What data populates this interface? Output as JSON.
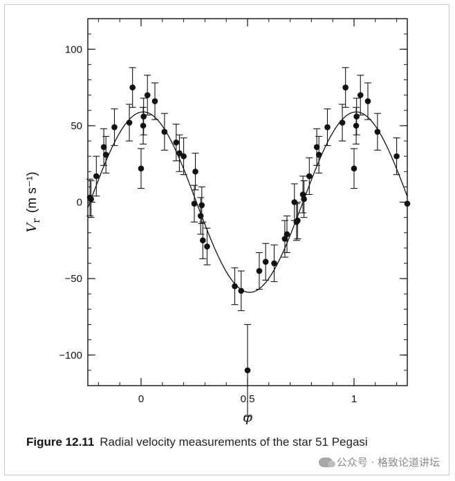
{
  "chart_data": {
    "type": "scatter",
    "xlabel": "φ",
    "ylabel": "V",
    "ylabel_sub": "r",
    "ylabel_units": "(m s⁻¹)",
    "xlim": [
      -0.25,
      1.25
    ],
    "ylim": [
      -120,
      120
    ],
    "xticks": [
      {
        "value": 0,
        "label": "0"
      },
      {
        "value": 0.5,
        "label": "0.5"
      },
      {
        "value": 1,
        "label": "1"
      }
    ],
    "yticks": [
      {
        "value": 100,
        "label": "100"
      },
      {
        "value": 50,
        "label": "50"
      },
      {
        "value": 0,
        "label": "0"
      },
      {
        "value": -50,
        "label": "−50"
      },
      {
        "value": -100,
        "label": "−100"
      }
    ],
    "x_minor_step": 0.1,
    "y_minor_step": 10,
    "grid": false,
    "legend": "none",
    "fit_curve": {
      "kind": "sinusoid",
      "amplitude": 59,
      "offset": 0,
      "peak_phase": 0.01
    },
    "points": [
      {
        "x": -0.24,
        "y": 3,
        "err": 12
      },
      {
        "x": -0.235,
        "y": 2,
        "err": 12
      },
      {
        "x": -0.21,
        "y": 17,
        "err": 13
      },
      {
        "x": -0.175,
        "y": 36,
        "err": 12
      },
      {
        "x": -0.165,
        "y": 31,
        "err": 12
      },
      {
        "x": -0.125,
        "y": 49,
        "err": 12
      },
      {
        "x": -0.055,
        "y": 52,
        "err": 12
      },
      {
        "x": -0.04,
        "y": 75,
        "err": 13
      },
      {
        "x": 0.0,
        "y": 22,
        "err": 13
      },
      {
        "x": 0.01,
        "y": 50,
        "err": 12
      },
      {
        "x": 0.012,
        "y": 56,
        "err": 12
      },
      {
        "x": 0.03,
        "y": 70,
        "err": 13
      },
      {
        "x": 0.065,
        "y": 66,
        "err": 12
      },
      {
        "x": 0.11,
        "y": 46,
        "err": 12
      },
      {
        "x": 0.165,
        "y": 39,
        "err": 12
      },
      {
        "x": 0.18,
        "y": 32,
        "err": 12
      },
      {
        "x": 0.2,
        "y": 30,
        "err": 12
      },
      {
        "x": 0.25,
        "y": -1,
        "err": 12
      },
      {
        "x": 0.255,
        "y": 20,
        "err": 12
      },
      {
        "x": 0.28,
        "y": -9,
        "err": 12
      },
      {
        "x": 0.285,
        "y": -2,
        "err": 12
      },
      {
        "x": 0.29,
        "y": -25,
        "err": 12
      },
      {
        "x": 0.31,
        "y": -29,
        "err": 12
      },
      {
        "x": 0.44,
        "y": -55,
        "err": 12
      },
      {
        "x": 0.47,
        "y": -58,
        "err": 13
      },
      {
        "x": 0.5,
        "y": -110,
        "err": 30
      },
      {
        "x": 0.555,
        "y": -45,
        "err": 12
      },
      {
        "x": 0.585,
        "y": -39,
        "err": 12
      },
      {
        "x": 0.625,
        "y": -40,
        "err": 12
      },
      {
        "x": 0.675,
        "y": -24,
        "err": 12
      },
      {
        "x": 0.685,
        "y": -21,
        "err": 12
      },
      {
        "x": 0.72,
        "y": 0,
        "err": 12
      },
      {
        "x": 0.73,
        "y": -13,
        "err": 12
      },
      {
        "x": 0.735,
        "y": -12,
        "err": 12
      },
      {
        "x": 0.76,
        "y": 5,
        "err": 12
      },
      {
        "x": 0.765,
        "y": 2,
        "err": 12
      },
      {
        "x": 0.79,
        "y": 17,
        "err": 12
      },
      {
        "x": 0.825,
        "y": 36,
        "err": 12
      },
      {
        "x": 0.835,
        "y": 31,
        "err": 12
      },
      {
        "x": 0.875,
        "y": 49,
        "err": 12
      },
      {
        "x": 0.945,
        "y": 52,
        "err": 12
      },
      {
        "x": 0.96,
        "y": 75,
        "err": 13
      },
      {
        "x": 1.0,
        "y": 22,
        "err": 13
      },
      {
        "x": 1.01,
        "y": 50,
        "err": 12
      },
      {
        "x": 1.012,
        "y": 56,
        "err": 12
      },
      {
        "x": 1.03,
        "y": 70,
        "err": 13
      },
      {
        "x": 1.065,
        "y": 66,
        "err": 12
      },
      {
        "x": 1.11,
        "y": 46,
        "err": 12
      },
      {
        "x": 1.2,
        "y": 30,
        "err": 12
      },
      {
        "x": 1.25,
        "y": -1,
        "err": 0
      }
    ]
  },
  "caption": {
    "figure_number": "Figure 12.11",
    "text": "Radial velocity measurements of the star 51 Pegasi"
  },
  "watermark": {
    "text": "公众号 · 格致论道讲坛",
    "icon": "wechat-icon"
  }
}
